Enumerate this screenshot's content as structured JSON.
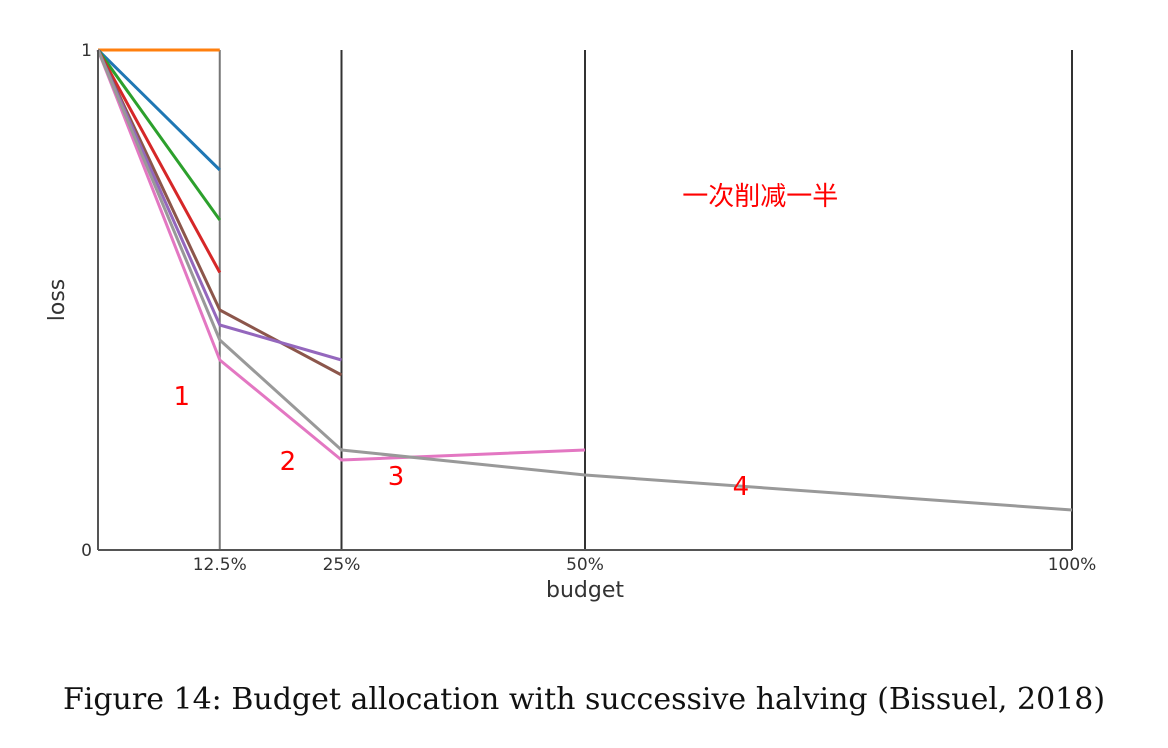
{
  "chart_data": {
    "type": "line",
    "xlabel": "budget",
    "ylabel": "loss",
    "x_ticks": [
      {
        "label": "12.5%",
        "value": 12.5
      },
      {
        "label": "25%",
        "value": 25
      },
      {
        "label": "50%",
        "value": 50
      },
      {
        "label": "100%",
        "value": 100
      }
    ],
    "y_ticks": [
      {
        "label": "0",
        "value": 0
      },
      {
        "label": "1",
        "value": 1
      }
    ],
    "xlim": [
      0,
      100
    ],
    "ylim": [
      0,
      1
    ],
    "series": [
      {
        "color": "#ff7f0e",
        "points": [
          [
            0,
            1.0
          ],
          [
            12.5,
            1.0
          ]
        ]
      },
      {
        "color": "#1f77b4",
        "points": [
          [
            0,
            1.0
          ],
          [
            12.5,
            0.76
          ]
        ]
      },
      {
        "color": "#2ca02c",
        "points": [
          [
            0,
            1.0
          ],
          [
            12.5,
            0.66
          ]
        ]
      },
      {
        "color": "#d62728",
        "points": [
          [
            0,
            1.0
          ],
          [
            12.5,
            0.555
          ]
        ]
      },
      {
        "color": "#8c564b",
        "points": [
          [
            0,
            1.0
          ],
          [
            12.5,
            0.48
          ],
          [
            25,
            0.35
          ]
        ]
      },
      {
        "color": "#9467bd",
        "points": [
          [
            0,
            1.0
          ],
          [
            12.5,
            0.45
          ],
          [
            25,
            0.38
          ]
        ]
      },
      {
        "color": "#e377c2",
        "points": [
          [
            0,
            1.0
          ],
          [
            12.5,
            0.38
          ],
          [
            25,
            0.18
          ],
          [
            50,
            0.2
          ]
        ]
      },
      {
        "color": "#999999",
        "points": [
          [
            0,
            1.0
          ],
          [
            12.5,
            0.42
          ],
          [
            25,
            0.2
          ],
          [
            50,
            0.15
          ],
          [
            100,
            0.08
          ]
        ]
      }
    ],
    "annotations": [
      {
        "text": "一次削减一半",
        "x": 68,
        "y": 0.69
      },
      {
        "text": "1",
        "x": 8.6,
        "y": 0.29
      },
      {
        "text": "2",
        "x": 19.5,
        "y": 0.16
      },
      {
        "text": "3",
        "x": 30.6,
        "y": 0.13
      },
      {
        "text": "4",
        "x": 66,
        "y": 0.11
      }
    ]
  },
  "caption": "Figure 14: Budget allocation with successive halving (Bissuel, 2018)"
}
